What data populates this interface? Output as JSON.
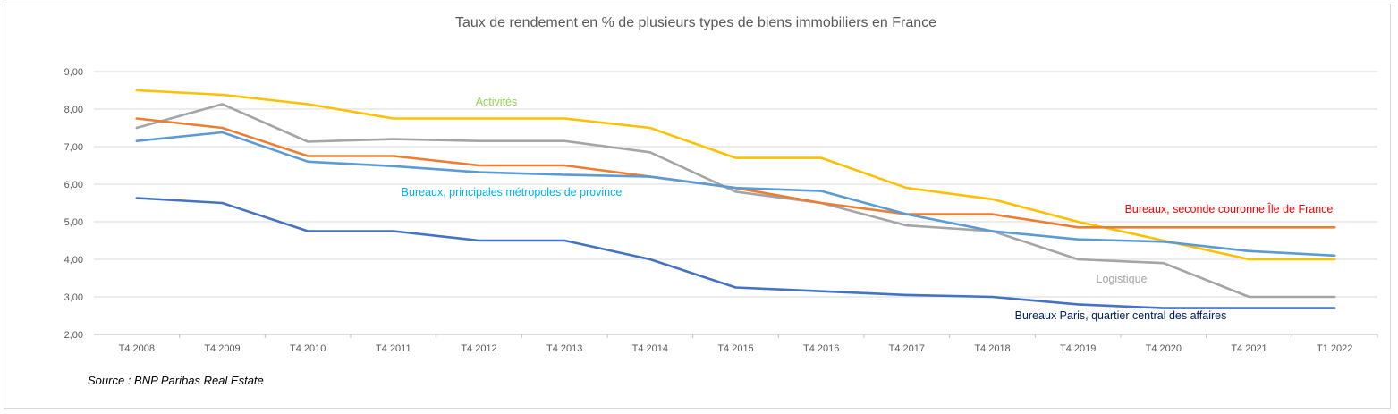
{
  "chart_data": {
    "type": "line",
    "title": "Taux de rendement en % de plusieurs types de biens immobiliers en France",
    "source": "Source : BNP Paribas Real Estate",
    "categories": [
      "T4 2008",
      "T4 2009",
      "T4 2010",
      "T4 2011",
      "T4 2012",
      "T4 2013",
      "T4 2014",
      "T4 2015",
      "T4 2016",
      "T4 2017",
      "T4 2018",
      "T4 2019",
      "T4 2020",
      "T4 2021",
      "T1 2022"
    ],
    "ylim": [
      2,
      9
    ],
    "yticks": [
      "2,00",
      "3,00",
      "4,00",
      "5,00",
      "6,00",
      "7,00",
      "8,00",
      "9,00"
    ],
    "grid": true,
    "series": [
      {
        "name": "Activités",
        "color": "#FFC000",
        "label_color": "#92D050",
        "values": [
          8.5,
          8.38,
          8.13,
          7.75,
          7.75,
          7.75,
          7.5,
          6.7,
          6.7,
          5.9,
          5.6,
          5.0,
          4.5,
          4.0,
          4.0
        ]
      },
      {
        "name": "Logistique",
        "color": "#A5A5A5",
        "label_color": "#A5A5A5",
        "values": [
          7.5,
          8.13,
          7.13,
          7.2,
          7.15,
          7.15,
          6.85,
          5.8,
          5.5,
          4.9,
          4.75,
          4.0,
          3.9,
          3.0,
          3.0
        ]
      },
      {
        "name": "Bureaux, seconde couronne Île de France",
        "color": "#ED7D31",
        "label_color": "#FF0000",
        "values": [
          7.75,
          7.5,
          6.75,
          6.75,
          6.5,
          6.5,
          6.2,
          5.9,
          5.5,
          5.2,
          5.2,
          4.85,
          4.85,
          4.85,
          4.85
        ]
      },
      {
        "name": "Bureaux, principales métropoles de province",
        "color": "#5B9BD5",
        "label_color": "#00B0F0",
        "values": [
          7.15,
          7.38,
          6.6,
          6.48,
          6.32,
          6.25,
          6.2,
          5.9,
          5.82,
          5.2,
          4.75,
          4.53,
          4.47,
          4.22,
          4.1
        ]
      },
      {
        "name": "Bureaux Paris, quartier central des affaires",
        "color": "#4472C4",
        "label_color": "#002060",
        "values": [
          5.63,
          5.5,
          4.75,
          4.75,
          4.5,
          4.5,
          4.0,
          3.25,
          3.15,
          3.05,
          3.0,
          2.8,
          2.7,
          2.7,
          2.7
        ]
      }
    ]
  }
}
